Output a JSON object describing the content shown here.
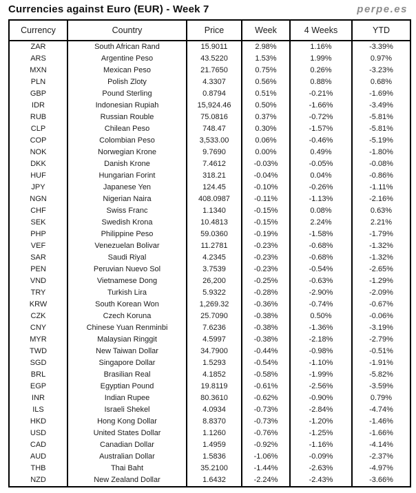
{
  "title": "Currencies against Euro (EUR) - Week 7",
  "brand": "perpe.es",
  "colors": {
    "positive": "#339966",
    "negative": "#ff4d4d",
    "border": "#000000",
    "brand_gray": "#8c8c8c"
  },
  "table": {
    "columns": [
      "Currency",
      "Country",
      "Price",
      "Week",
      "4 Weeks",
      "YTD"
    ],
    "rows": [
      {
        "code": "ZAR",
        "country": "South African Rand",
        "price": "15.9011",
        "week": "2.98%",
        "four_weeks": "1.16%",
        "ytd": "-3.39%"
      },
      {
        "code": "ARS",
        "country": "Argentine Peso",
        "price": "43.5220",
        "week": "1.53%",
        "four_weeks": "1.99%",
        "ytd": "0.97%"
      },
      {
        "code": "MXN",
        "country": "Mexican Peso",
        "price": "21.7650",
        "week": "0.75%",
        "four_weeks": "0.26%",
        "ytd": "-3.23%"
      },
      {
        "code": "PLN",
        "country": "Polish Zloty",
        "price": "4.3307",
        "week": "0.56%",
        "four_weeks": "0.88%",
        "ytd": "0.68%"
      },
      {
        "code": "GBP",
        "country": "Pound Sterling",
        "price": "0.8794",
        "week": "0.51%",
        "four_weeks": "-0.21%",
        "ytd": "-1.69%"
      },
      {
        "code": "IDR",
        "country": "Indonesian Rupiah",
        "price": "15,924.46",
        "week": "0.50%",
        "four_weeks": "-1.66%",
        "ytd": "-3.49%"
      },
      {
        "code": "RUB",
        "country": "Russian Rouble",
        "price": "75.0816",
        "week": "0.37%",
        "four_weeks": "-0.72%",
        "ytd": "-5.81%"
      },
      {
        "code": "CLP",
        "country": "Chilean Peso",
        "price": "748.47",
        "week": "0.30%",
        "four_weeks": "-1.57%",
        "ytd": "-5.81%"
      },
      {
        "code": "COP",
        "country": "Colombian Peso",
        "price": "3,533.00",
        "week": "0.06%",
        "four_weeks": "-0.46%",
        "ytd": "-5.19%"
      },
      {
        "code": "NOK",
        "country": "Norwegian Krone",
        "price": "9.7690",
        "week": "0.00%",
        "four_weeks": "0.49%",
        "ytd": "-1.80%"
      },
      {
        "code": "DKK",
        "country": "Danish Krone",
        "price": "7.4612",
        "week": "-0.03%",
        "four_weeks": "-0.05%",
        "ytd": "-0.08%"
      },
      {
        "code": "HUF",
        "country": "Hungarian Forint",
        "price": "318.21",
        "week": "-0.04%",
        "four_weeks": "0.04%",
        "ytd": "-0.86%"
      },
      {
        "code": "JPY",
        "country": "Japanese Yen",
        "price": "124.45",
        "week": "-0.10%",
        "four_weeks": "-0.26%",
        "ytd": "-1.11%"
      },
      {
        "code": "NGN",
        "country": "Nigerian Naira",
        "price": "408.0987",
        "week": "-0.11%",
        "four_weeks": "-1.13%",
        "ytd": "-2.16%"
      },
      {
        "code": "CHF",
        "country": "Swiss Franc",
        "price": "1.1340",
        "week": "-0.15%",
        "four_weeks": "0.08%",
        "ytd": "0.63%"
      },
      {
        "code": "SEK",
        "country": "Swedish Krona",
        "price": "10.4813",
        "week": "-0.15%",
        "four_weeks": "2.24%",
        "ytd": "2.21%"
      },
      {
        "code": "PHP",
        "country": "Philippine Peso",
        "price": "59.0360",
        "week": "-0.19%",
        "four_weeks": "-1.58%",
        "ytd": "-1.79%"
      },
      {
        "code": "VEF",
        "country": "Venezuelan Bolivar",
        "price": "11.2781",
        "week": "-0.23%",
        "four_weeks": "-0.68%",
        "ytd": "-1.32%"
      },
      {
        "code": "SAR",
        "country": "Saudi Riyal",
        "price": "4.2345",
        "week": "-0.23%",
        "four_weeks": "-0.68%",
        "ytd": "-1.32%"
      },
      {
        "code": "PEN",
        "country": "Peruvian Nuevo Sol",
        "price": "3.7539",
        "week": "-0.23%",
        "four_weeks": "-0.54%",
        "ytd": "-2.65%"
      },
      {
        "code": "VND",
        "country": "Vietnamese Dong",
        "price": "26,200",
        "week": "-0.25%",
        "four_weeks": "-0.63%",
        "ytd": "-1.29%"
      },
      {
        "code": "TRY",
        "country": "Turkish Lira",
        "price": "5.9322",
        "week": "-0.28%",
        "four_weeks": "-2.90%",
        "ytd": "-2.09%"
      },
      {
        "code": "KRW",
        "country": "South Korean Won",
        "price": "1,269.32",
        "week": "-0.36%",
        "four_weeks": "-0.74%",
        "ytd": "-0.67%"
      },
      {
        "code": "CZK",
        "country": "Czech Koruna",
        "price": "25.7090",
        "week": "-0.38%",
        "four_weeks": "0.50%",
        "ytd": "-0.06%"
      },
      {
        "code": "CNY",
        "country": "Chinese Yuan Renminbi",
        "price": "7.6236",
        "week": "-0.38%",
        "four_weeks": "-1.36%",
        "ytd": "-3.19%"
      },
      {
        "code": "MYR",
        "country": "Malaysian Ringgit",
        "price": "4.5997",
        "week": "-0.38%",
        "four_weeks": "-2.18%",
        "ytd": "-2.79%"
      },
      {
        "code": "TWD",
        "country": "New Taiwan Dollar",
        "price": "34.7900",
        "week": "-0.44%",
        "four_weeks": "-0.98%",
        "ytd": "-0.51%"
      },
      {
        "code": "SGD",
        "country": "Singapore Dollar",
        "price": "1.5293",
        "week": "-0.54%",
        "four_weeks": "-1.10%",
        "ytd": "-1.91%"
      },
      {
        "code": "BRL",
        "country": "Brasilian Real",
        "price": "4.1852",
        "week": "-0.58%",
        "four_weeks": "-1.99%",
        "ytd": "-5.82%"
      },
      {
        "code": "EGP",
        "country": "Egyptian Pound",
        "price": "19.8119",
        "week": "-0.61%",
        "four_weeks": "-2.56%",
        "ytd": "-3.59%"
      },
      {
        "code": "INR",
        "country": "Indian Rupee",
        "price": "80.3610",
        "week": "-0.62%",
        "four_weeks": "-0.90%",
        "ytd": "0.79%"
      },
      {
        "code": "ILS",
        "country": "Israeli Shekel",
        "price": "4.0934",
        "week": "-0.73%",
        "four_weeks": "-2.84%",
        "ytd": "-4.74%"
      },
      {
        "code": "HKD",
        "country": "Hong Kong Dollar",
        "price": "8.8370",
        "week": "-0.73%",
        "four_weeks": "-1.20%",
        "ytd": "-1.46%"
      },
      {
        "code": "USD",
        "country": "United States Dollar",
        "price": "1.1260",
        "week": "-0.76%",
        "four_weeks": "-1.25%",
        "ytd": "-1.66%"
      },
      {
        "code": "CAD",
        "country": "Canadian Dollar",
        "price": "1.4959",
        "week": "-0.92%",
        "four_weeks": "-1.16%",
        "ytd": "-4.14%"
      },
      {
        "code": "AUD",
        "country": "Australian Dollar",
        "price": "1.5836",
        "week": "-1.06%",
        "four_weeks": "-0.09%",
        "ytd": "-2.37%"
      },
      {
        "code": "THB",
        "country": "Thai Baht",
        "price": "35.2100",
        "week": "-1.44%",
        "four_weeks": "-2.63%",
        "ytd": "-4.97%"
      },
      {
        "code": "NZD",
        "country": "New Zealand Dollar",
        "price": "1.6432",
        "week": "-2.24%",
        "four_weeks": "-2.43%",
        "ytd": "-3.66%"
      }
    ]
  }
}
